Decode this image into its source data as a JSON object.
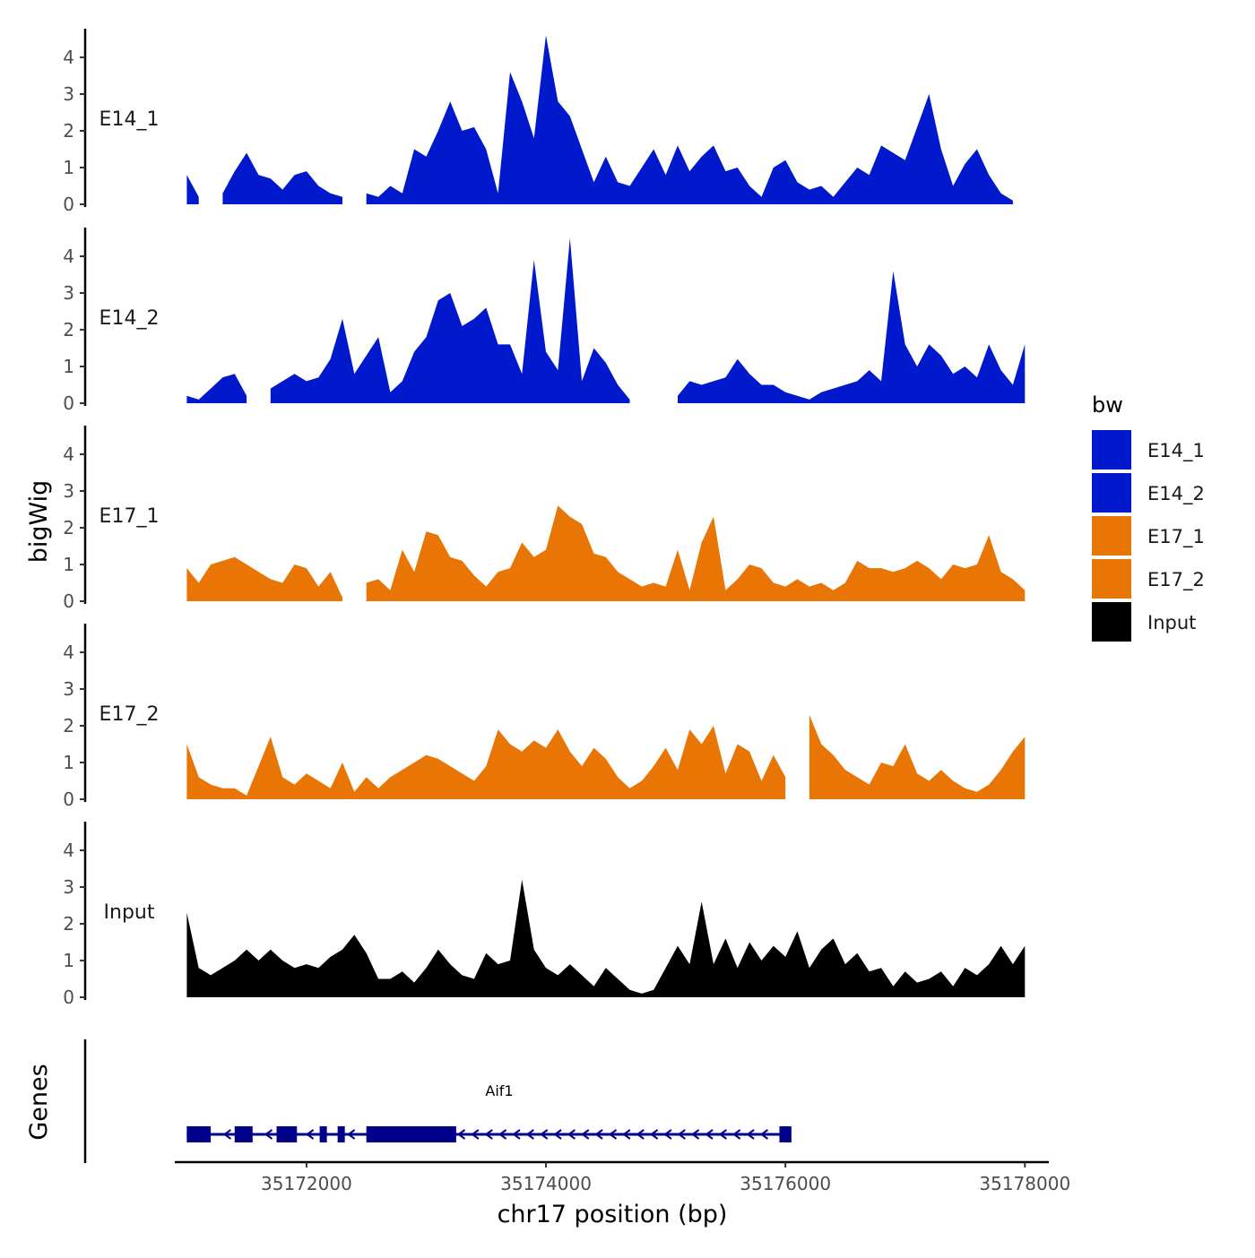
{
  "chart_data": {
    "type": "area",
    "y_axis_title": "bigWig",
    "x_axis_title": "chr17 position (bp)",
    "xlim": [
      35170900,
      35178200
    ],
    "x_ticks": [
      35172000,
      35174000,
      35176000,
      35178000
    ],
    "x_tick_labels": [
      "35172000",
      "35174000",
      "35176000",
      "35178000"
    ],
    "ylim": [
      0,
      4.8
    ],
    "y_ticks": [
      0,
      1,
      2,
      3,
      4
    ],
    "y_tick_labels": [
      "0",
      "1",
      "2",
      "3",
      "4"
    ],
    "legend": {
      "title": "bw",
      "placement": "right",
      "entries": [
        {
          "label": "E14_1",
          "color": "#0019cc"
        },
        {
          "label": "E14_2",
          "color": "#0019cc"
        },
        {
          "label": "E17_1",
          "color": "#e87504"
        },
        {
          "label": "E17_2",
          "color": "#e87504"
        },
        {
          "label": "Input",
          "color": "#000000"
        }
      ]
    },
    "x_grid": [
      35171000,
      35171100,
      35171200,
      35171300,
      35171400,
      35171500,
      35171600,
      35171700,
      35171800,
      35171900,
      35172000,
      35172100,
      35172200,
      35172300,
      35172400,
      35172500,
      35172600,
      35172700,
      35172800,
      35172900,
      35173000,
      35173100,
      35173200,
      35173300,
      35173400,
      35173500,
      35173600,
      35173700,
      35173800,
      35173900,
      35174000,
      35174100,
      35174200,
      35174300,
      35174400,
      35174500,
      35174600,
      35174700,
      35174800,
      35174900,
      35175000,
      35175100,
      35175200,
      35175300,
      35175400,
      35175500,
      35175600,
      35175700,
      35175800,
      35175900,
      35176000,
      35176100,
      35176200,
      35176300,
      35176400,
      35176500,
      35176600,
      35176700,
      35176800,
      35176900,
      35177000,
      35177100,
      35177200,
      35177300,
      35177400,
      35177500,
      35177600,
      35177700,
      35177800,
      35177900,
      35178000
    ],
    "series": [
      {
        "name": "E14_1",
        "color": "#0019cc",
        "values": [
          0.8,
          0.2,
          null,
          0.3,
          0.9,
          1.4,
          0.8,
          0.7,
          0.4,
          0.8,
          0.9,
          0.5,
          0.3,
          0.2,
          null,
          0.3,
          0.2,
          0.5,
          0.3,
          1.5,
          1.3,
          2.0,
          2.8,
          2.0,
          2.1,
          1.5,
          0.3,
          3.6,
          2.8,
          1.8,
          4.6,
          2.8,
          2.4,
          1.5,
          0.6,
          1.3,
          0.6,
          0.5,
          1.0,
          1.5,
          0.8,
          1.6,
          0.9,
          1.3,
          1.6,
          0.9,
          1.0,
          0.5,
          0.2,
          1.0,
          1.2,
          0.6,
          0.4,
          0.5,
          0.2,
          0.6,
          1.0,
          0.8,
          1.6,
          1.4,
          1.2,
          2.1,
          3.0,
          1.5,
          0.5,
          1.1,
          1.5,
          0.8,
          0.3,
          0.1,
          null
        ]
      },
      {
        "name": "E14_2",
        "color": "#0019cc",
        "values": [
          0.2,
          0.1,
          0.4,
          0.7,
          0.8,
          0.2,
          null,
          0.4,
          0.6,
          0.8,
          0.6,
          0.7,
          1.2,
          2.3,
          0.8,
          1.3,
          1.8,
          0.3,
          0.6,
          1.4,
          1.8,
          2.8,
          3.0,
          2.1,
          2.3,
          2.6,
          1.6,
          1.6,
          0.8,
          3.9,
          1.4,
          0.9,
          4.5,
          0.6,
          1.5,
          1.1,
          0.5,
          0.1,
          null,
          null,
          null,
          0.2,
          0.6,
          0.5,
          0.6,
          0.7,
          1.2,
          0.8,
          0.5,
          0.5,
          0.3,
          0.2,
          0.1,
          0.3,
          0.4,
          0.5,
          0.6,
          0.9,
          0.6,
          3.6,
          1.6,
          1.0,
          1.6,
          1.3,
          0.8,
          1.0,
          0.7,
          1.6,
          0.9,
          0.5,
          1.6
        ]
      },
      {
        "name": "E17_1",
        "color": "#e87504",
        "values": [
          0.9,
          0.5,
          1.0,
          1.1,
          1.2,
          1.0,
          0.8,
          0.6,
          0.5,
          1.0,
          0.9,
          0.4,
          0.8,
          0.1,
          null,
          0.5,
          0.6,
          0.3,
          1.4,
          0.8,
          1.9,
          1.8,
          1.2,
          1.1,
          0.7,
          0.4,
          0.8,
          0.9,
          1.6,
          1.2,
          1.4,
          2.6,
          2.3,
          2.1,
          1.3,
          1.2,
          0.8,
          0.6,
          0.4,
          0.5,
          0.4,
          1.4,
          0.3,
          1.6,
          2.3,
          0.3,
          0.6,
          1.0,
          0.9,
          0.5,
          0.4,
          0.6,
          0.4,
          0.5,
          0.3,
          0.5,
          1.1,
          0.9,
          0.9,
          0.8,
          0.9,
          1.1,
          0.9,
          0.6,
          1.0,
          0.9,
          1.0,
          1.8,
          0.8,
          0.6,
          0.3
        ]
      },
      {
        "name": "E17_2",
        "color": "#e87504",
        "values": [
          1.5,
          0.6,
          0.4,
          0.3,
          0.3,
          0.1,
          0.9,
          1.7,
          0.6,
          0.4,
          0.7,
          0.5,
          0.3,
          1.0,
          0.2,
          0.6,
          0.3,
          0.6,
          0.8,
          1.0,
          1.2,
          1.1,
          0.9,
          0.7,
          0.5,
          0.9,
          1.9,
          1.5,
          1.3,
          1.6,
          1.4,
          1.9,
          1.3,
          0.9,
          1.4,
          1.1,
          0.6,
          0.3,
          0.5,
          0.9,
          1.4,
          0.8,
          1.9,
          1.5,
          2.0,
          0.7,
          1.5,
          1.3,
          0.5,
          1.2,
          0.6,
          null,
          2.3,
          1.5,
          1.2,
          0.8,
          0.6,
          0.4,
          1.0,
          0.9,
          1.5,
          0.7,
          0.5,
          0.8,
          0.5,
          0.3,
          0.2,
          0.4,
          0.8,
          1.3,
          1.7
        ]
      },
      {
        "name": "Input",
        "color": "#000000",
        "values": [
          2.3,
          0.8,
          0.6,
          0.8,
          1.0,
          1.3,
          1.0,
          1.3,
          1.0,
          0.8,
          0.9,
          0.8,
          1.1,
          1.3,
          1.7,
          1.2,
          0.5,
          0.5,
          0.7,
          0.4,
          0.8,
          1.3,
          0.9,
          0.6,
          0.5,
          1.2,
          0.9,
          1.0,
          3.2,
          1.3,
          0.8,
          0.6,
          0.9,
          0.6,
          0.3,
          0.8,
          0.5,
          0.2,
          0.1,
          0.2,
          0.8,
          1.4,
          0.9,
          2.6,
          0.9,
          1.6,
          0.8,
          1.5,
          1.0,
          1.4,
          1.1,
          1.8,
          0.8,
          1.3,
          1.6,
          0.9,
          1.2,
          0.7,
          0.8,
          0.3,
          0.7,
          0.4,
          0.5,
          0.7,
          0.3,
          0.8,
          0.6,
          0.9,
          1.4,
          0.9,
          1.4
        ]
      }
    ],
    "genes_track": {
      "label": "Genes",
      "gene_name": "Aif1",
      "color": "#00008b",
      "strand": "-",
      "gene_start": 35171000,
      "gene_end": 35176000,
      "exons": [
        [
          35171000,
          35171200
        ],
        [
          35171400,
          35171550
        ],
        [
          35171750,
          35171920
        ],
        [
          35172110,
          35172170
        ],
        [
          35172260,
          35172320
        ],
        [
          35172500,
          35173250
        ],
        [
          35175950,
          35176050
        ]
      ]
    }
  }
}
